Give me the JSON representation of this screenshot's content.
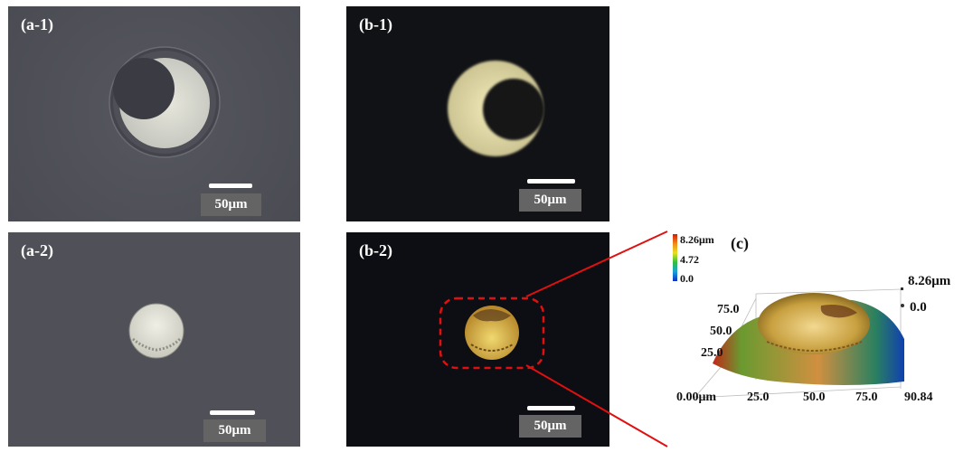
{
  "panels": {
    "a1": {
      "label": "(a-1)",
      "scale_text": "50μm"
    },
    "b1": {
      "label": "(b-1)",
      "scale_text": "50μm"
    },
    "a2": {
      "label": "(a-2)",
      "scale_text": "50μm"
    },
    "b2": {
      "label": "(b-2)",
      "scale_text": "50μm"
    }
  },
  "panel_c": {
    "label": "(c)",
    "colorbar": {
      "max": "8.26μm",
      "mid": "4.72",
      "min": "0.0"
    },
    "z_labels": {
      "top": "8.26μm",
      "bottom": "0.0"
    },
    "y_ticks": [
      "75.0",
      "50.0",
      "25.0"
    ],
    "x_ticks": [
      "0.00μm",
      "25.0",
      "50.0",
      "75.0",
      "90.84"
    ]
  },
  "colors": {
    "highlight": "#e01010",
    "scale_bar": "#ffffff"
  }
}
